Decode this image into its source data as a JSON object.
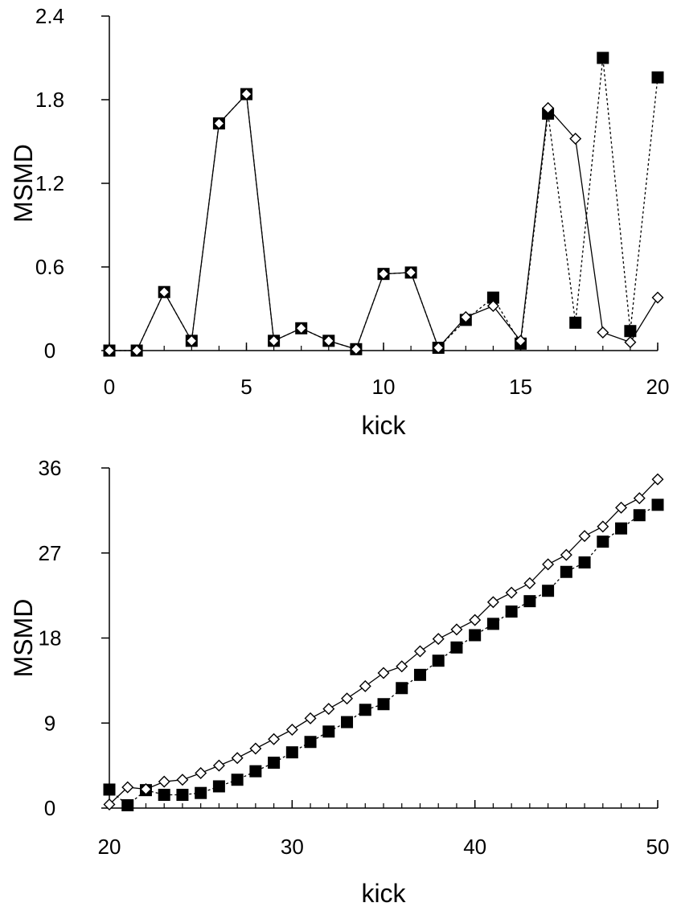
{
  "chart_data": [
    {
      "type": "line",
      "xlabel": "kick",
      "ylabel": "MSMD",
      "xlim": [
        0,
        20
      ],
      "ylim": [
        0,
        2.4
      ],
      "xticks": [
        0,
        5,
        10,
        15,
        20
      ],
      "xtick_labels": [
        "0",
        "5",
        "10",
        "15",
        "20"
      ],
      "yticks": [
        0,
        0.6,
        1.2,
        1.8,
        2.4
      ],
      "ytick_labels": [
        "0",
        "0.6",
        "1.2",
        "1.8",
        "2.4"
      ],
      "grid": false,
      "x": [
        0,
        1,
        2,
        3,
        4,
        5,
        6,
        7,
        8,
        9,
        10,
        11,
        12,
        13,
        14,
        15,
        16,
        17,
        18,
        19,
        20
      ],
      "series": [
        {
          "marker": "filled-square",
          "line": "dotted",
          "color": "#000000",
          "values": [
            0.0,
            0.0,
            0.42,
            0.07,
            1.63,
            1.84,
            0.07,
            0.16,
            0.07,
            0.01,
            0.55,
            0.56,
            0.02,
            0.22,
            0.38,
            0.05,
            1.7,
            0.2,
            2.1,
            0.14,
            1.96
          ]
        },
        {
          "marker": "open-diamond",
          "line": "solid",
          "color": "#000000",
          "values": [
            0.0,
            0.0,
            0.42,
            0.07,
            1.63,
            1.84,
            0.07,
            0.16,
            0.07,
            0.01,
            0.55,
            0.56,
            0.02,
            0.24,
            0.32,
            0.07,
            1.74,
            1.52,
            0.13,
            0.06,
            0.38
          ]
        }
      ]
    },
    {
      "type": "line",
      "xlabel": "kick",
      "ylabel": "MSMD",
      "xlim": [
        20,
        50
      ],
      "ylim": [
        0,
        36
      ],
      "xticks": [
        20,
        30,
        40,
        50
      ],
      "xtick_labels": [
        "20",
        "30",
        "40",
        "50"
      ],
      "yticks": [
        0,
        9,
        18,
        27,
        36
      ],
      "ytick_labels": [
        "0",
        "9",
        "18",
        "27",
        "36"
      ],
      "grid": false,
      "x": [
        20,
        21,
        22,
        23,
        24,
        25,
        26,
        27,
        28,
        29,
        30,
        31,
        32,
        33,
        34,
        35,
        36,
        37,
        38,
        39,
        40,
        41,
        42,
        43,
        44,
        45,
        46,
        47,
        48,
        49,
        50
      ],
      "series": [
        {
          "marker": "filled-square",
          "line": "dotted",
          "color": "#000000",
          "values": [
            1.96,
            0.3,
            1.9,
            1.4,
            1.4,
            1.6,
            2.3,
            3.0,
            3.9,
            4.8,
            5.9,
            7.0,
            8.1,
            9.1,
            10.4,
            11.0,
            12.7,
            14.1,
            15.6,
            17.0,
            18.3,
            19.5,
            20.8,
            21.9,
            23.0,
            25.0,
            26.0,
            28.2,
            29.6,
            31.0,
            32.1
          ]
        },
        {
          "marker": "open-diamond",
          "line": "solid",
          "color": "#000000",
          "values": [
            0.38,
            2.2,
            2.0,
            2.8,
            3.0,
            3.7,
            4.5,
            5.3,
            6.3,
            7.3,
            8.3,
            9.5,
            10.5,
            11.6,
            12.9,
            14.3,
            15.0,
            16.6,
            17.9,
            18.9,
            19.9,
            21.8,
            22.8,
            23.8,
            25.8,
            26.8,
            28.8,
            29.8,
            31.8,
            32.8,
            34.8
          ]
        }
      ]
    }
  ]
}
